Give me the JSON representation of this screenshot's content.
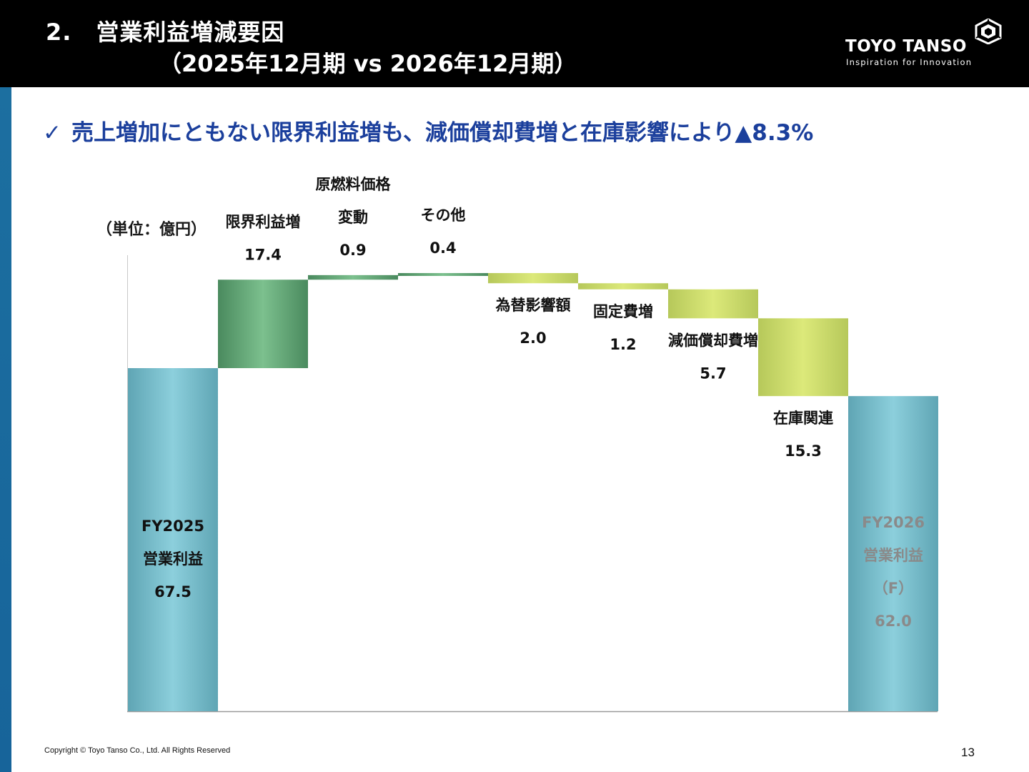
{
  "header": {
    "title_number": "2.",
    "title_text": "営業利益増減要因",
    "title_period": "（2025年12月期 vs 2026年12月期）",
    "logo_name": "TOYO TANSO",
    "logo_tagline": "Inspiration for Innovation",
    "logo_icon": "hexagon-logo-icon"
  },
  "subtitle": {
    "check": "✓",
    "text": "売上増加にともない限界利益増も、減価償却費増と在庫影響により▲8.3%"
  },
  "colors": {
    "header_bg": "#000000",
    "sidebar": "#1a6a9d",
    "subtitle_text": "#1b3f9c",
    "total_bar": "#7fc3d1",
    "increase_bar": "#6cb07e",
    "decrease_bar": "#cfe072",
    "end_label_text": "#8a8a8a"
  },
  "chart_data": {
    "type": "waterfall",
    "unit_label": "（単位：億円）",
    "ylim": [
      0,
      90
    ],
    "steps": [
      {
        "kind": "total",
        "label_lines": [
          "FY2025",
          "営業利益"
        ],
        "value_text": "67.5",
        "value": 67.5
      },
      {
        "kind": "increase",
        "label_lines": [
          "限界利益増"
        ],
        "value_text": "17.4",
        "value": 17.4
      },
      {
        "kind": "increase",
        "label_lines": [
          "原燃料価格",
          "変動"
        ],
        "value_text": "0.9",
        "value": 0.9
      },
      {
        "kind": "increase",
        "label_lines": [
          "その他"
        ],
        "value_text": "0.4",
        "value": 0.4
      },
      {
        "kind": "decrease",
        "label_lines": [
          "為替影響額"
        ],
        "value_text": "2.0",
        "value": -2.0
      },
      {
        "kind": "decrease",
        "label_lines": [
          "固定費増"
        ],
        "value_text": "1.2",
        "value": -1.2
      },
      {
        "kind": "decrease",
        "label_lines": [
          "減価償却費増"
        ],
        "value_text": "5.7",
        "value": -5.7
      },
      {
        "kind": "decrease",
        "label_lines": [
          "在庫関連"
        ],
        "value_text": "15.3",
        "value": -15.3
      },
      {
        "kind": "total",
        "label_lines": [
          "FY2026",
          "営業利益",
          "（F）"
        ],
        "value_text": "62.0",
        "value": 62.0
      }
    ]
  },
  "footer": {
    "copyright": "Copyright © Toyo Tanso Co., Ltd. All Rights Reserved",
    "page_number": "13"
  }
}
